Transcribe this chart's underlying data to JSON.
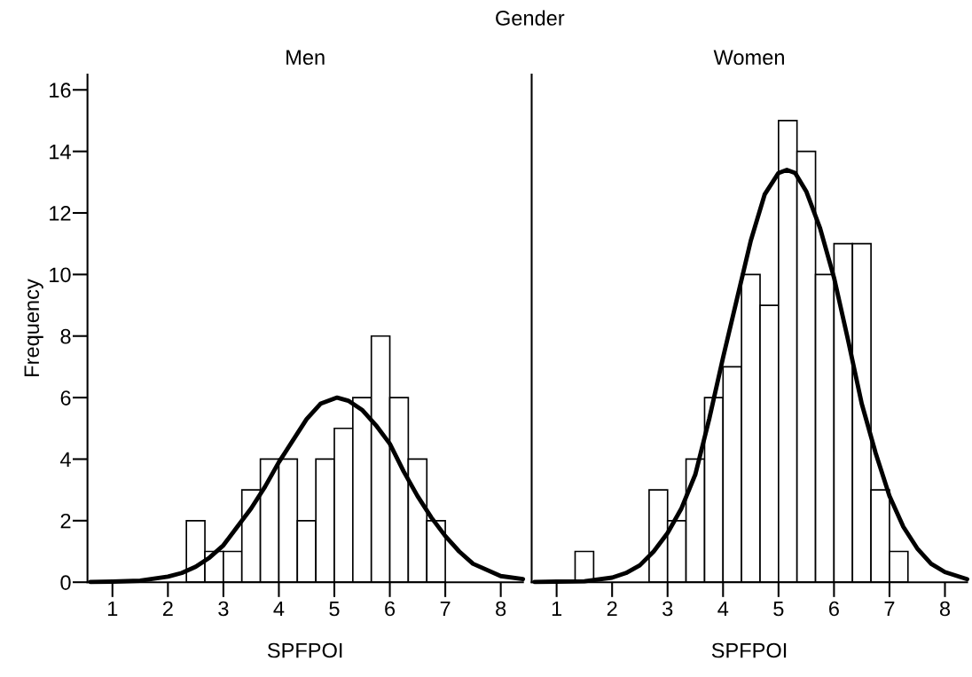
{
  "chart_data": [
    {
      "type": "histogram",
      "title": "Men",
      "xlabel": "SPFPOI",
      "ylabel": "Frequency",
      "annotations": [
        "Gender"
      ],
      "bins": [
        2.333,
        2.667,
        3.0,
        3.333,
        3.667,
        4.0,
        4.333,
        4.667,
        5.0,
        5.333,
        5.667,
        6.0,
        6.333,
        6.667,
        7.0
      ],
      "values": [
        2,
        1,
        1,
        3,
        4,
        4,
        2,
        4,
        5,
        6,
        8,
        6,
        4,
        2
      ],
      "color": "#ffffff",
      "series": [
        {
          "type": "line",
          "color": "#000000",
          "x": [
            0.6,
            1.0,
            1.5,
            2.0,
            2.25,
            2.5,
            2.75,
            3.0,
            3.25,
            3.5,
            3.75,
            4.0,
            4.25,
            4.5,
            4.75,
            5.05,
            5.25,
            5.5,
            5.75,
            6.0,
            6.25,
            6.5,
            6.75,
            7.0,
            7.25,
            7.5,
            8.0,
            8.4
          ],
          "values": [
            0.01,
            0.02,
            0.05,
            0.18,
            0.3,
            0.5,
            0.8,
            1.2,
            1.8,
            2.4,
            3.1,
            3.9,
            4.6,
            5.3,
            5.8,
            6.0,
            5.9,
            5.6,
            5.1,
            4.5,
            3.6,
            2.8,
            2.1,
            1.5,
            1.0,
            0.6,
            0.2,
            0.1
          ]
        }
      ],
      "xlim": [
        0.55,
        8.4
      ],
      "xticks": [
        1,
        2,
        3,
        4,
        5,
        6,
        7,
        8
      ],
      "ylim": [
        0,
        16.5
      ],
      "yticks": [
        0,
        2,
        4,
        6,
        8,
        10,
        12,
        14,
        16
      ]
    },
    {
      "type": "histogram",
      "title": "Women",
      "xlabel": "SPFPOI",
      "tick_labels": "x",
      "bins": [
        1.333,
        1.667,
        2.0,
        2.333,
        2.667,
        3.0,
        3.333,
        3.667,
        4.0,
        4.333,
        4.667,
        5.0,
        5.333,
        5.667,
        6.0,
        6.333,
        6.667,
        7.0,
        7.333
      ],
      "values": [
        1,
        0,
        0,
        0,
        3,
        2,
        4,
        6,
        7,
        10,
        9,
        15,
        14,
        10,
        11,
        11,
        3,
        1
      ],
      "color": "#ffffff",
      "series": [
        {
          "type": "line",
          "color": "#000000",
          "x": [
            0.6,
            1.0,
            1.5,
            2.0,
            2.25,
            2.5,
            2.75,
            3.0,
            3.25,
            3.5,
            3.75,
            4.0,
            4.25,
            4.5,
            4.75,
            5.0,
            5.15,
            5.3,
            5.5,
            5.75,
            6.0,
            6.25,
            6.5,
            6.75,
            7.0,
            7.25,
            7.5,
            7.75,
            8.0,
            8.4
          ],
          "values": [
            0.01,
            0.02,
            0.03,
            0.15,
            0.3,
            0.55,
            1.0,
            1.6,
            2.4,
            3.5,
            5.3,
            7.3,
            9.2,
            11.1,
            12.6,
            13.3,
            13.4,
            13.3,
            12.7,
            11.5,
            9.9,
            7.9,
            5.8,
            4.2,
            2.8,
            1.8,
            1.1,
            0.6,
            0.33,
            0.1
          ]
        }
      ],
      "xlim": [
        0.55,
        8.4
      ],
      "xticks": [
        1,
        2,
        3,
        4,
        5,
        6,
        7,
        8
      ],
      "ylim": [
        0,
        16.5
      ],
      "yticks": [
        0,
        2,
        4,
        6,
        8,
        10,
        12,
        14,
        16
      ]
    }
  ]
}
